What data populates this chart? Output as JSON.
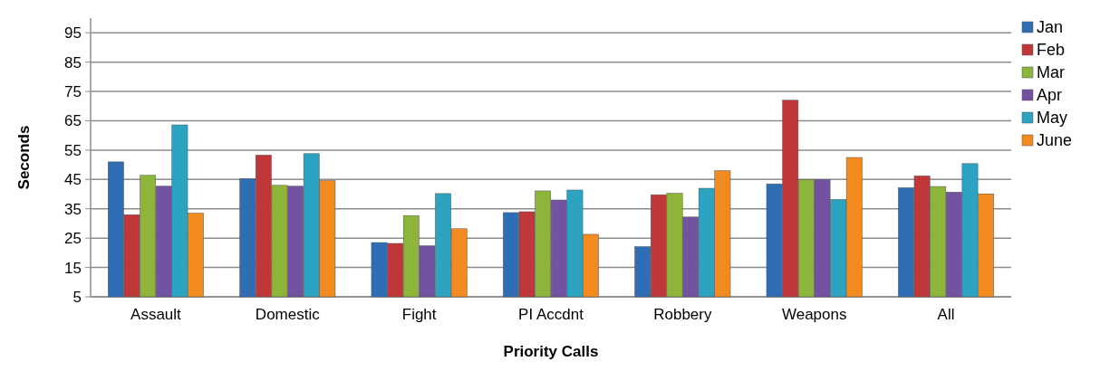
{
  "chart_data": {
    "type": "bar",
    "xlabel": "Priority Calls",
    "ylabel": "Seconds",
    "categories": [
      "Assault",
      "Domestic",
      "Fight",
      "PI Accdnt",
      "Robbery",
      "Weapons",
      "All"
    ],
    "series": [
      {
        "name": "Jan",
        "color": "#2f6db5",
        "values": [
          51,
          45.3,
          23.5,
          33.7,
          22.1,
          43.5,
          42.2
        ]
      },
      {
        "name": "Feb",
        "color": "#c0373a",
        "values": [
          33,
          53.3,
          23.2,
          34,
          39.8,
          72,
          46.2
        ]
      },
      {
        "name": "Mar",
        "color": "#8db43b",
        "values": [
          46.4,
          43,
          32.7,
          41.1,
          40.3,
          44.9,
          42.6
        ]
      },
      {
        "name": "Apr",
        "color": "#7352a1",
        "values": [
          42.7,
          42.7,
          22.4,
          38,
          32.2,
          44.9,
          40.7
        ]
      },
      {
        "name": "May",
        "color": "#2ba3c1",
        "values": [
          63.6,
          53.8,
          40.2,
          41.4,
          42,
          38.2,
          50.4
        ]
      },
      {
        "name": "June",
        "color": "#f28a20",
        "values": [
          33.5,
          44.6,
          28.2,
          26.3,
          48,
          52.5,
          40.1
        ]
      }
    ],
    "ylim": [
      5,
      100
    ],
    "yticks": [
      5,
      15,
      25,
      35,
      45,
      55,
      65,
      75,
      85,
      95
    ],
    "grid": "y",
    "legend": "top right"
  }
}
